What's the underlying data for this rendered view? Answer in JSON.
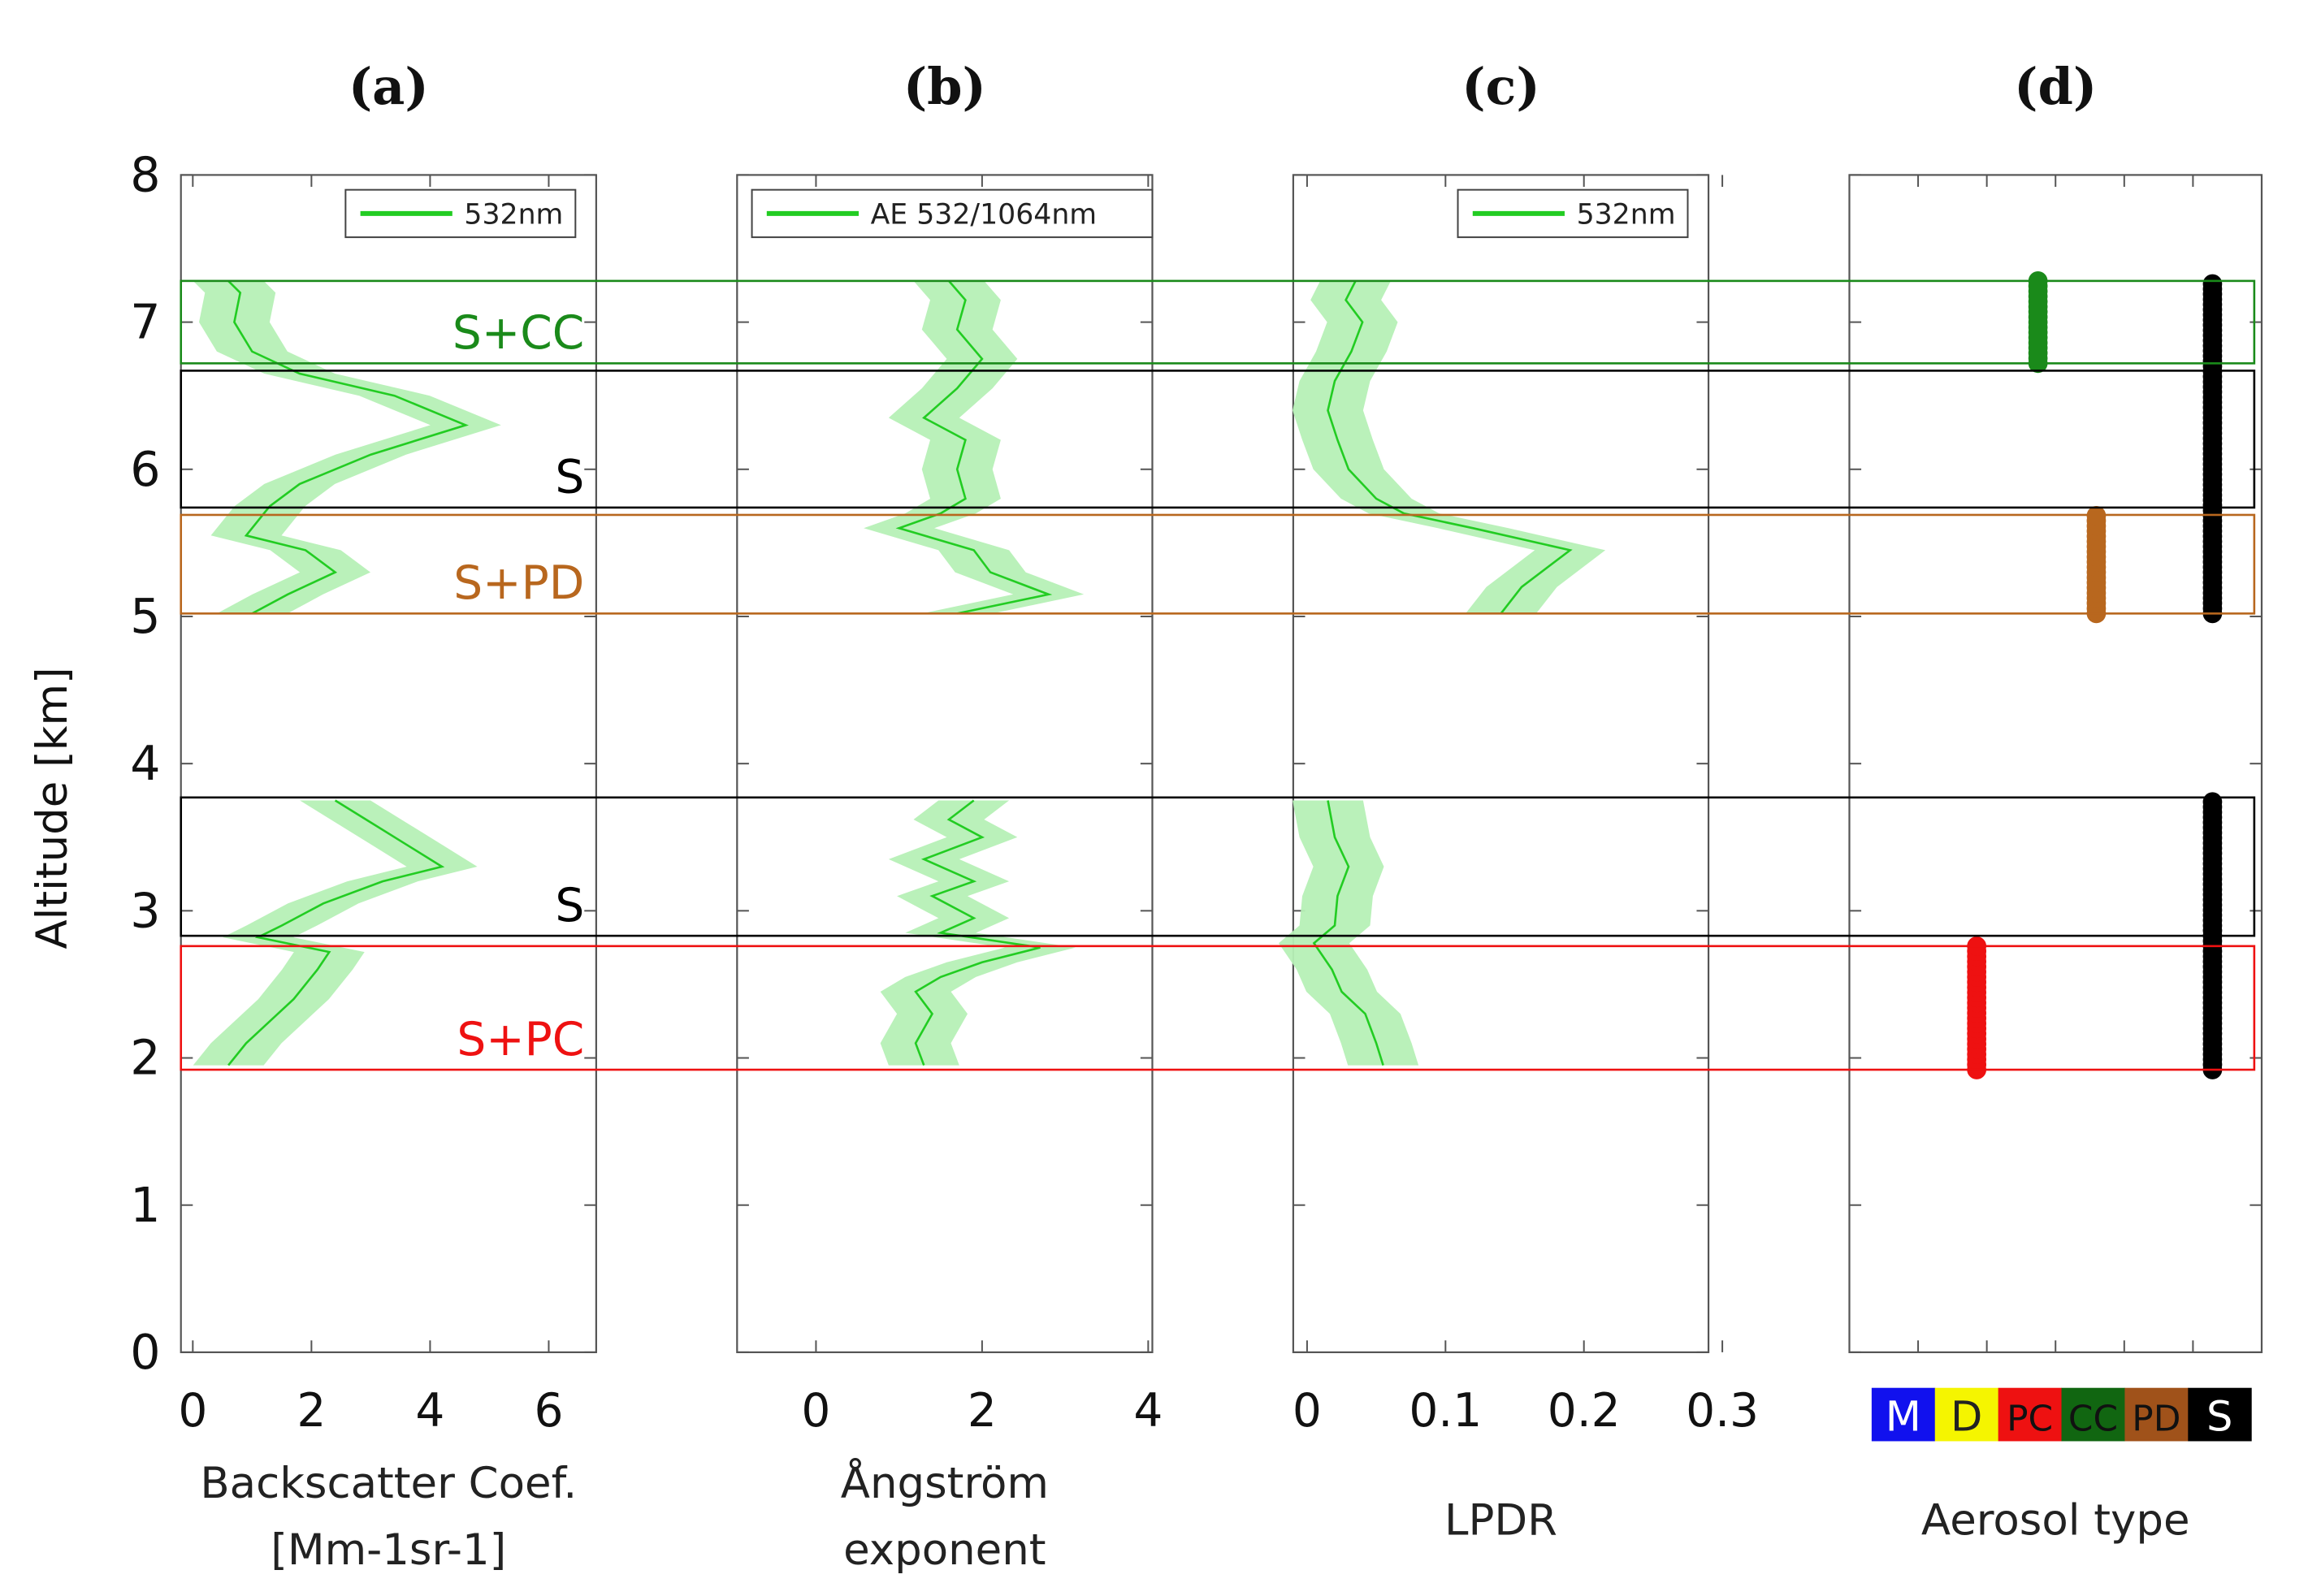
{
  "chart_data": [
    {
      "type": "line",
      "panel_label": "(a)",
      "xlabel_lines": [
        "Backscatter Coef.",
        "[Mm-1sr-1]"
      ],
      "ylabel": "Altitude [km]",
      "xlim": [
        -0.2,
        6.8
      ],
      "ylim": [
        0,
        8
      ],
      "xticks": [
        0,
        2,
        4,
        6
      ],
      "yticks": [
        0,
        1,
        2,
        3,
        4,
        5,
        6,
        7,
        8
      ],
      "legend": {
        "label": "532nm",
        "color": "#22cc22",
        "position": "top-right"
      },
      "series": [
        {
          "name": "532nm",
          "color": "#22cc22",
          "band_color": "#b6f0b6",
          "points": [
            [
              0.6,
              1.95
            ],
            [
              0.9,
              2.1
            ],
            [
              1.3,
              2.25
            ],
            [
              1.7,
              2.4
            ],
            [
              1.9,
              2.5
            ],
            [
              2.1,
              2.6
            ],
            [
              2.3,
              2.72
            ],
            [
              1.1,
              2.82
            ],
            [
              1.5,
              2.9
            ],
            [
              2.2,
              3.05
            ],
            [
              3.2,
              3.2
            ],
            [
              4.2,
              3.3
            ],
            [
              3.6,
              3.45
            ],
            [
              3.0,
              3.6
            ],
            [
              2.4,
              3.75
            ],
            [
              1.0,
              5.02
            ],
            [
              1.6,
              5.15
            ],
            [
              2.4,
              5.3
            ],
            [
              1.9,
              5.45
            ],
            [
              0.9,
              5.55
            ],
            [
              1.2,
              5.7
            ],
            [
              1.3,
              5.75
            ],
            [
              1.8,
              5.9
            ],
            [
              3.0,
              6.1
            ],
            [
              4.6,
              6.3
            ],
            [
              3.4,
              6.5
            ],
            [
              1.8,
              6.65
            ],
            [
              1.0,
              6.8
            ],
            [
              0.7,
              7.0
            ],
            [
              0.8,
              7.2
            ],
            [
              0.6,
              7.28
            ]
          ]
        }
      ],
      "layers": [
        {
          "label": "S+CC",
          "bottom": 6.72,
          "top": 7.28,
          "color": "#1a8a1a"
        },
        {
          "label": "S",
          "bottom": 5.74,
          "top": 6.67,
          "color": "#000000"
        },
        {
          "label": "S+PD",
          "bottom": 5.02,
          "top": 5.69,
          "color": "#b8671e"
        },
        {
          "label": "S",
          "bottom": 2.83,
          "top": 3.77,
          "color": "#000000"
        },
        {
          "label": "S+PC",
          "bottom": 1.92,
          "top": 2.76,
          "color": "#ee1111"
        }
      ]
    },
    {
      "type": "line",
      "panel_label": "(b)",
      "xlabel_lines": [
        "Ångström",
        "exponent"
      ],
      "xlim": [
        -0.95,
        4.05
      ],
      "ylim": [
        0,
        8
      ],
      "xticks": [
        0,
        2,
        4
      ],
      "yticks": [
        0,
        1,
        2,
        3,
        4,
        5,
        6,
        7,
        8
      ],
      "legend": {
        "label": "AE 532/1064nm",
        "color": "#22cc22",
        "position": "top-left"
      },
      "series": [
        {
          "name": "AE 532/1064nm",
          "color": "#22cc22",
          "band_color": "#b6f0b6",
          "points": [
            [
              1.3,
              1.95
            ],
            [
              1.2,
              2.1
            ],
            [
              1.4,
              2.3
            ],
            [
              1.2,
              2.45
            ],
            [
              1.5,
              2.55
            ],
            [
              2.0,
              2.65
            ],
            [
              2.7,
              2.75
            ],
            [
              1.5,
              2.85
            ],
            [
              1.9,
              2.95
            ],
            [
              1.4,
              3.1
            ],
            [
              1.9,
              3.2
            ],
            [
              1.3,
              3.35
            ],
            [
              2.0,
              3.5
            ],
            [
              1.6,
              3.62
            ],
            [
              1.9,
              3.75
            ],
            [
              1.7,
              5.02
            ],
            [
              2.8,
              5.15
            ],
            [
              2.1,
              5.3
            ],
            [
              1.9,
              5.45
            ],
            [
              1.0,
              5.6
            ],
            [
              1.5,
              5.7
            ],
            [
              1.8,
              5.8
            ],
            [
              1.7,
              6.0
            ],
            [
              1.8,
              6.2
            ],
            [
              1.3,
              6.35
            ],
            [
              1.7,
              6.55
            ],
            [
              2.0,
              6.75
            ],
            [
              1.7,
              6.95
            ],
            [
              1.8,
              7.15
            ],
            [
              1.6,
              7.28
            ]
          ]
        }
      ]
    },
    {
      "type": "line",
      "panel_label": "(c)",
      "xlabel_lines": [
        "LPDR"
      ],
      "xlim": [
        -0.01,
        0.29
      ],
      "ylim": [
        0,
        8
      ],
      "xticks": [
        0,
        0.1,
        0.2,
        0.3
      ],
      "yticks": [
        0,
        1,
        2,
        3,
        4,
        5,
        6,
        7,
        8
      ],
      "legend": {
        "label": "532nm",
        "color": "#22cc22",
        "position": "top-right"
      },
      "series": [
        {
          "name": "532nm",
          "color": "#22cc22",
          "band_color": "#b6f0b6",
          "points": [
            [
              0.055,
              1.95
            ],
            [
              0.05,
              2.1
            ],
            [
              0.042,
              2.3
            ],
            [
              0.025,
              2.45
            ],
            [
              0.018,
              2.6
            ],
            [
              0.005,
              2.78
            ],
            [
              0.02,
              2.9
            ],
            [
              0.022,
              3.1
            ],
            [
              0.03,
              3.3
            ],
            [
              0.02,
              3.5
            ],
            [
              0.015,
              3.75
            ],
            [
              0.14,
              5.02
            ],
            [
              0.155,
              5.2
            ],
            [
              0.19,
              5.45
            ],
            [
              0.12,
              5.6
            ],
            [
              0.07,
              5.7
            ],
            [
              0.05,
              5.8
            ],
            [
              0.03,
              6.0
            ],
            [
              0.022,
              6.2
            ],
            [
              0.015,
              6.4
            ],
            [
              0.02,
              6.6
            ],
            [
              0.032,
              6.8
            ],
            [
              0.04,
              7.0
            ],
            [
              0.028,
              7.15
            ],
            [
              0.035,
              7.28
            ]
          ]
        }
      ]
    },
    {
      "type": "scatter",
      "panel_label": "(d)",
      "xlabel_lines": [
        "Aerosol type"
      ],
      "ylim": [
        0,
        8
      ],
      "yticks": [
        0,
        1,
        2,
        3,
        4,
        5,
        6,
        7,
        8
      ],
      "categories": [
        "M",
        "D",
        "PC",
        "CC",
        "PD",
        "S"
      ],
      "category_colors": [
        "#1111ee",
        "#f5f500",
        "#ee1111",
        "#116611",
        "#a0521a",
        "#000000"
      ],
      "category_text_colors": [
        "#ffffff",
        "#222222",
        "#111111",
        "#111111",
        "#111111",
        "#ffffff"
      ],
      "series": [
        {
          "name": "PC",
          "color": "#ee1111",
          "bottom": 1.92,
          "top": 2.76
        },
        {
          "name": "CC",
          "color": "#1a8a1a",
          "bottom": 6.72,
          "top": 7.28
        },
        {
          "name": "PD",
          "color": "#b8671e",
          "bottom": 5.02,
          "top": 5.69
        },
        {
          "name": "S",
          "color": "#000000",
          "bottom": 1.92,
          "top": 3.77
        },
        {
          "name": "S",
          "color": "#000000",
          "bottom": 5.02,
          "top": 7.28
        }
      ]
    }
  ]
}
